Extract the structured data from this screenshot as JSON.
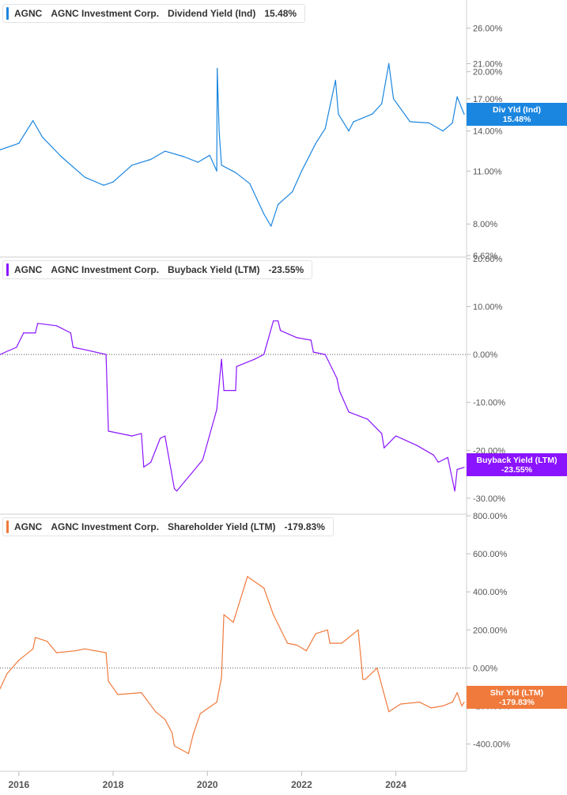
{
  "company": {
    "ticker": "AGNC",
    "name": "AGNC Investment Corp."
  },
  "panels": [
    {
      "metric": "Dividend Yield (Ind)",
      "value_label": "15.48%",
      "tag_name": "Div Yld (Ind)",
      "color": "#1b86e0"
    },
    {
      "metric": "Buyback Yield (LTM)",
      "value_label": "-23.55%",
      "tag_name": "Buyback Yield (LTM)",
      "color": "#8a14ff"
    },
    {
      "metric": "Shareholder Yield (LTM)",
      "value_label": "-179.83%",
      "tag_name": "Shr Yld (LTM)",
      "color": "#f07a3c"
    }
  ],
  "chart_data": [
    {
      "type": "line",
      "title": "AGNC Investment Corp. Dividend Yield (Ind)",
      "yscale": "log",
      "ylim": [
        6.62,
        30.5
      ],
      "yticks": [
        26,
        21,
        20,
        17,
        14,
        11,
        8,
        6.62
      ],
      "ytick_labels": [
        "26.00%",
        "21.00%",
        "20.00%",
        "17.00%",
        "14.00%",
        "11.00%",
        "8.00%",
        "6.62%"
      ],
      "x": [
        2015.6,
        2016.0,
        2016.3,
        2016.5,
        2016.9,
        2017.4,
        2017.8,
        2018.0,
        2018.4,
        2018.8,
        2019.1,
        2019.5,
        2019.8,
        2020.05,
        2020.2,
        2020.21,
        2020.25,
        2020.3,
        2020.6,
        2020.9,
        2021.2,
        2021.35,
        2021.5,
        2021.8,
        2022.0,
        2022.3,
        2022.5,
        2022.72,
        2022.78,
        2023.0,
        2023.1,
        2023.5,
        2023.7,
        2023.85,
        2023.95,
        2024.3,
        2024.7,
        2025.0,
        2025.2,
        2025.3,
        2025.45
      ],
      "values": [
        12.5,
        13.0,
        14.9,
        13.5,
        12.0,
        10.6,
        10.1,
        10.3,
        11.4,
        11.8,
        12.4,
        12.0,
        11.6,
        12.1,
        11.0,
        20.4,
        14.0,
        11.4,
        10.9,
        10.2,
        8.5,
        7.9,
        9.0,
        9.7,
        11.0,
        13.0,
        14.2,
        19.0,
        15.5,
        14.0,
        14.8,
        15.5,
        16.5,
        21.0,
        17.0,
        14.8,
        14.7,
        14.0,
        14.7,
        17.2,
        15.48
      ],
      "xlim": [
        2015.6,
        2025.5
      ],
      "xticks": [
        2016,
        2018,
        2020,
        2022,
        2024
      ]
    },
    {
      "type": "line",
      "title": "AGNC Investment Corp. Buyback Yield (LTM)",
      "ylim": [
        -33,
        20
      ],
      "yticks": [
        20,
        10,
        0,
        -10,
        -20,
        -30
      ],
      "ytick_labels": [
        "20.00%",
        "10.00%",
        "0.00%",
        "-10.00%",
        "-20.00%",
        "-30.00%"
      ],
      "zero_line": 0,
      "x": [
        2015.6,
        2015.95,
        2016.1,
        2016.35,
        2016.4,
        2016.8,
        2017.1,
        2017.15,
        2017.4,
        2017.85,
        2017.9,
        2018.4,
        2018.6,
        2018.65,
        2018.8,
        2019.0,
        2019.1,
        2019.3,
        2019.35,
        2019.9,
        2020.2,
        2020.3,
        2020.35,
        2020.6,
        2020.62,
        2021.0,
        2021.2,
        2021.4,
        2021.5,
        2021.55,
        2021.9,
        2022.2,
        2022.25,
        2022.5,
        2022.75,
        2022.8,
        2023.0,
        2023.4,
        2023.7,
        2023.75,
        2024.0,
        2024.45,
        2024.8,
        2024.9,
        2025.1,
        2025.25,
        2025.3,
        2025.45
      ],
      "values": [
        0.0,
        1.5,
        4.5,
        4.5,
        6.5,
        6.0,
        4.5,
        1.5,
        1.0,
        0.0,
        -16.0,
        -17.0,
        -16.5,
        -23.5,
        -22.5,
        -17.5,
        -17.0,
        -28.0,
        -28.5,
        -22.0,
        -11.5,
        -1.0,
        -7.5,
        -7.5,
        -2.5,
        -1.0,
        0.0,
        7.0,
        7.0,
        5.0,
        3.5,
        3.0,
        0.5,
        0.0,
        -5.0,
        -7.5,
        -12.0,
        -13.5,
        -16.5,
        -19.5,
        -17.0,
        -19.0,
        -21.0,
        -22.5,
        -21.5,
        -28.5,
        -24.0,
        -23.55
      ],
      "xlim": [
        2015.6,
        2025.5
      ],
      "xticks": [
        2016,
        2018,
        2020,
        2022,
        2024
      ]
    },
    {
      "type": "line",
      "title": "AGNC Investment Corp. Shareholder Yield (LTM)",
      "ylim": [
        -535,
        800
      ],
      "yticks": [
        800,
        600,
        400,
        200,
        0,
        -200,
        -400
      ],
      "ytick_labels": [
        "800.00%",
        "600.00%",
        "400.00%",
        "200.00%",
        "0.00%",
        "-200.00%",
        "-400.00%"
      ],
      "zero_line": 0,
      "x": [
        2015.6,
        2015.75,
        2016.0,
        2016.3,
        2016.35,
        2016.6,
        2016.8,
        2017.2,
        2017.4,
        2017.85,
        2017.9,
        2018.1,
        2018.6,
        2018.9,
        2019.1,
        2019.25,
        2019.3,
        2019.6,
        2019.7,
        2019.85,
        2020.2,
        2020.3,
        2020.35,
        2020.55,
        2020.8,
        2020.85,
        2021.2,
        2021.4,
        2021.7,
        2021.9,
        2022.1,
        2022.3,
        2022.55,
        2022.6,
        2022.85,
        2023.2,
        2023.3,
        2023.35,
        2023.6,
        2023.85,
        2024.1,
        2024.5,
        2024.75,
        2025.0,
        2025.2,
        2025.3,
        2025.4,
        2025.45
      ],
      "values": [
        -110.0,
        -30.0,
        40.0,
        100.0,
        160.0,
        140.0,
        80.0,
        90.0,
        100.0,
        80.0,
        -70.0,
        -140.0,
        -130.0,
        -230.0,
        -270.0,
        -340.0,
        -410.0,
        -450.0,
        -350.0,
        -240.0,
        -180.0,
        -50.0,
        280.0,
        240.0,
        440.0,
        480.0,
        420.0,
        280.0,
        130.0,
        120.0,
        90.0,
        180.0,
        200.0,
        130.0,
        130.0,
        200.0,
        -60.0,
        -60.0,
        0.0,
        -230.0,
        -190.0,
        -180.0,
        -210.0,
        -200.0,
        -180.0,
        -130.0,
        -200.0,
        -179.83
      ],
      "xlim": [
        2015.6,
        2025.5
      ],
      "xticks": [
        2016,
        2018,
        2020,
        2022,
        2024
      ]
    }
  ],
  "x_axis": {
    "labels": [
      "2016",
      "2018",
      "2020",
      "2022",
      "2024"
    ]
  }
}
